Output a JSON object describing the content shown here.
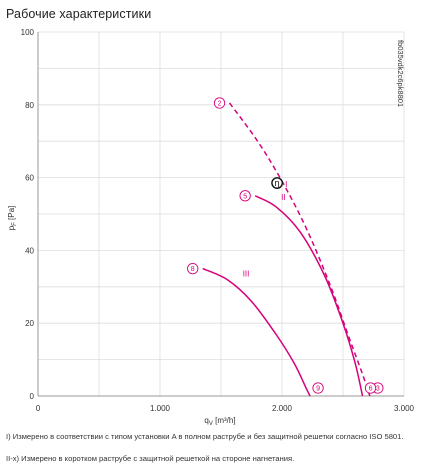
{
  "page_title": "Рабочие характеристики",
  "notes": {
    "note1": "I) Измерено в соответствии с типом установки A в полном раструбе и без защитной решетки согласно ISO 5801.",
    "note2": "II-x) Измерено в коротком раструбе с защитной решеткой на стороне нагнетания."
  },
  "colors": {
    "curve": "#d6007a",
    "grid": "#dddddd",
    "axis": "#999999",
    "text": "#333333"
  },
  "chart_data": {
    "type": "line",
    "title": "Рабочие характеристики",
    "xlabel": "q_V [m³/h]",
    "ylabel": "p_F [Pa]",
    "xlim": [
      0,
      3000
    ],
    "ylim": [
      0,
      100
    ],
    "xticks": [
      0,
      1000,
      2000,
      3000
    ],
    "xtick_labels": [
      "0",
      "1.000",
      "2.000",
      "3.000"
    ],
    "yticks": [
      0,
      20,
      40,
      60,
      80,
      100
    ],
    "grid": true,
    "side_label": "fb035vdk2c6pk8801",
    "series": [
      {
        "roman": "I",
        "style": "dashed",
        "start_marker": "2",
        "end_marker": "3",
        "x": [
          1570,
          1800,
          2000,
          2200,
          2400,
          2550,
          2660,
          2720
        ],
        "y": [
          80.5,
          70,
          59,
          46,
          30,
          16,
          6,
          0
        ]
      },
      {
        "roman": "II",
        "style": "solid",
        "start_marker": "5",
        "end_marker": "6",
        "x": [
          1780,
          1950,
          2150,
          2350,
          2500,
          2600,
          2660
        ],
        "y": [
          55,
          52,
          45,
          33,
          20,
          9,
          0
        ]
      },
      {
        "roman": "III",
        "style": "solid",
        "start_marker": "8",
        "end_marker": "9",
        "x": [
          1350,
          1550,
          1750,
          1950,
          2100,
          2200,
          2230
        ],
        "y": [
          35,
          32,
          26,
          17,
          9,
          2,
          0
        ]
      }
    ],
    "efficiency_marker": {
      "label": "η",
      "x": 1960,
      "y": 58.5
    }
  }
}
